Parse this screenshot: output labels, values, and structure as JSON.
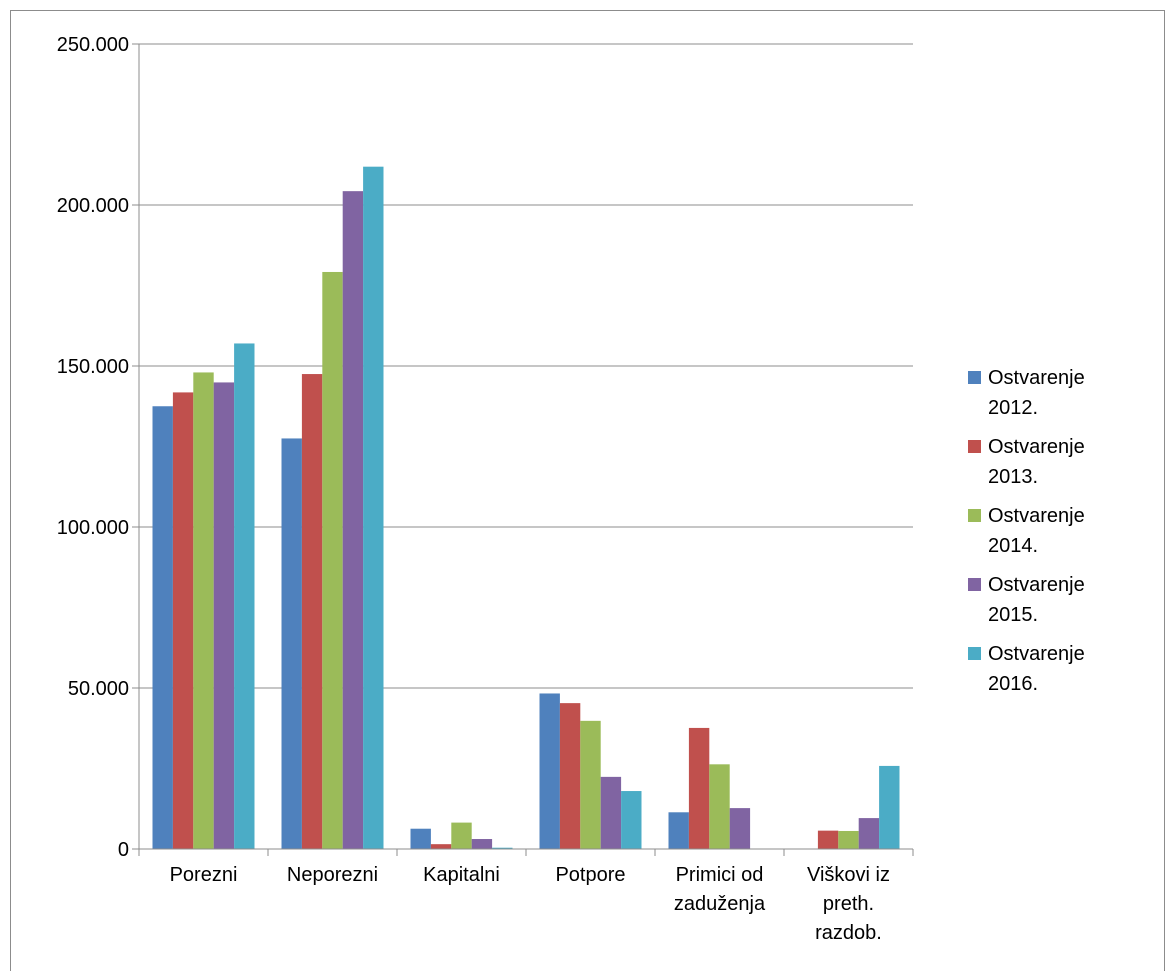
{
  "chart_data": {
    "type": "bar",
    "categories": [
      [
        "Porezni"
      ],
      [
        "Neporezni"
      ],
      [
        "Kapitalni"
      ],
      [
        "Potpore"
      ],
      [
        "Primici od",
        "zaduženja"
      ],
      [
        "Viškovi iz",
        "preth.",
        "razdob."
      ]
    ],
    "series": [
      {
        "name": [
          "Ostvarenje",
          "2012."
        ],
        "color": "#4F81BD",
        "values": [
          137500,
          127500,
          6300,
          48300,
          11400,
          0
        ]
      },
      {
        "name": [
          "Ostvarenje",
          "2013."
        ],
        "color": "#C0504D",
        "values": [
          141800,
          147500,
          1500,
          45300,
          37600,
          5700
        ]
      },
      {
        "name": [
          "Ostvarenje",
          "2014."
        ],
        "color": "#9BBB59",
        "values": [
          148000,
          179200,
          8200,
          39800,
          26300,
          5600
        ]
      },
      {
        "name": [
          "Ostvarenje",
          "2015."
        ],
        "color": "#8064A2",
        "values": [
          144900,
          204300,
          3100,
          22400,
          12700,
          9600
        ]
      },
      {
        "name": [
          "Ostvarenje",
          "2016."
        ],
        "color": "#4BACC6",
        "values": [
          157000,
          211900,
          400,
          18000,
          0,
          25800
        ]
      }
    ],
    "yticks": [
      "0",
      "50.000",
      "100.000",
      "150.000",
      "200.000",
      "250.000"
    ],
    "ylim": [
      0,
      250000
    ],
    "grid": true,
    "legend_position": "right"
  }
}
